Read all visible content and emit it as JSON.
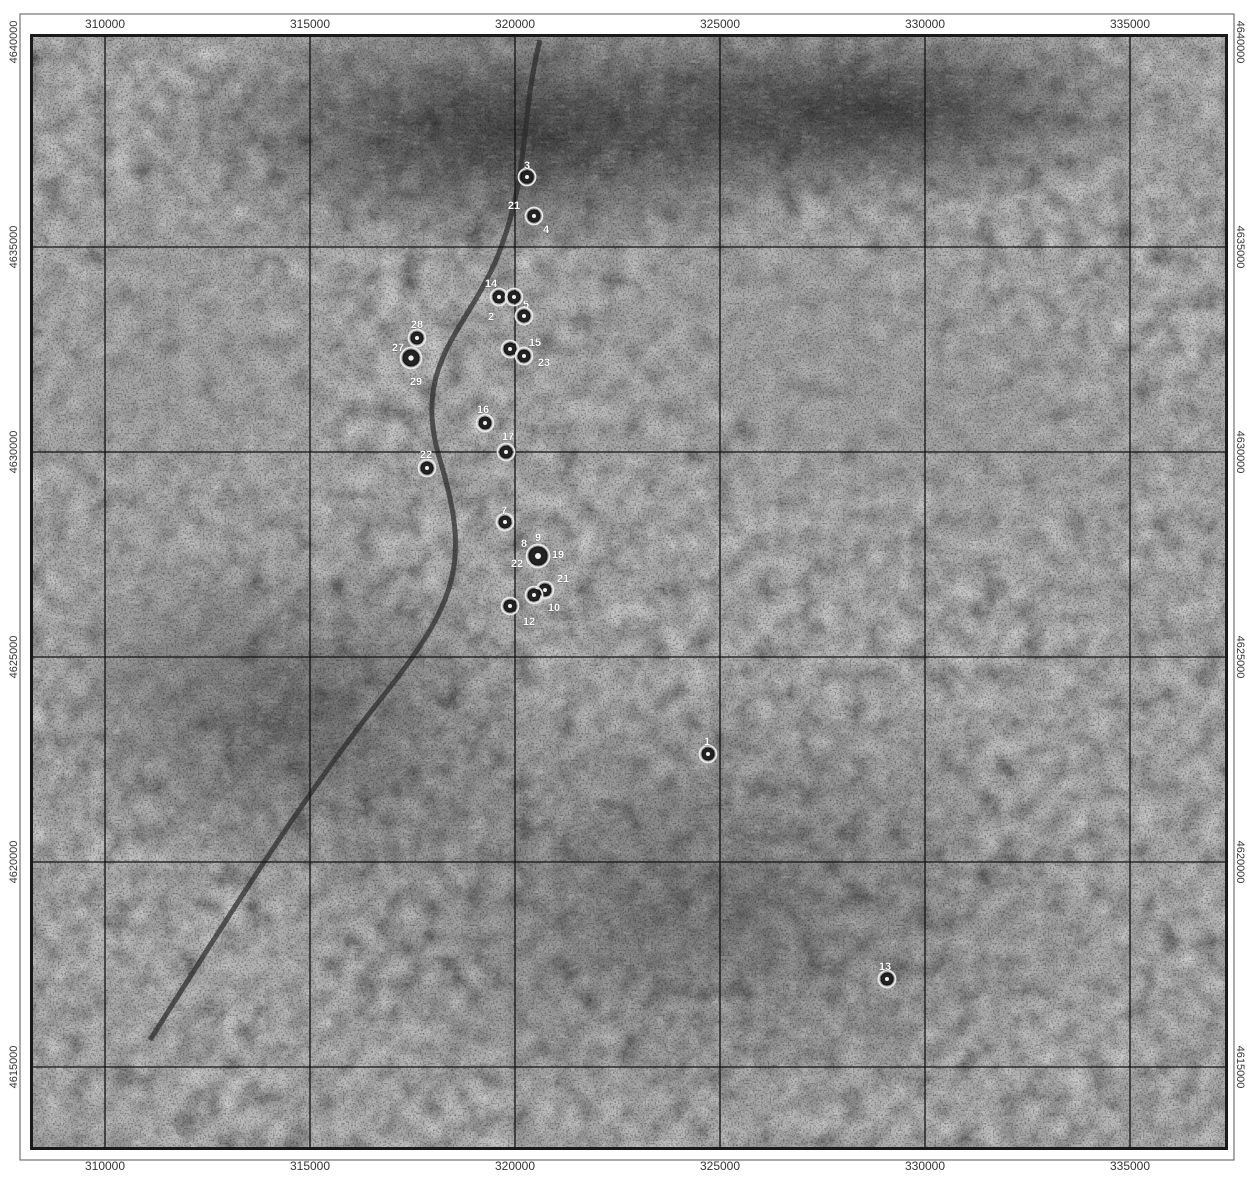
{
  "map": {
    "x_ticks": [
      "310000",
      "315000",
      "320000",
      "325000",
      "330000",
      "335000"
    ],
    "y_ticks": [
      "4640000",
      "4635000",
      "4630000",
      "4625000",
      "4620000",
      "4615000"
    ],
    "sites": [
      {
        "label": "3"
      },
      {
        "label": "21"
      },
      {
        "label": "4"
      },
      {
        "label": "14"
      },
      {
        "label": "5"
      },
      {
        "label": "2"
      },
      {
        "label": "28"
      },
      {
        "label": "27"
      },
      {
        "label": "29"
      },
      {
        "label": "15"
      },
      {
        "label": "23"
      },
      {
        "label": "16"
      },
      {
        "label": "17"
      },
      {
        "label": "22"
      },
      {
        "label": "7"
      },
      {
        "label": "9"
      },
      {
        "label": "8"
      },
      {
        "label": "19"
      },
      {
        "label": "22"
      },
      {
        "label": "21"
      },
      {
        "label": "10"
      },
      {
        "label": "12"
      },
      {
        "label": "1"
      },
      {
        "label": "13"
      }
    ]
  }
}
